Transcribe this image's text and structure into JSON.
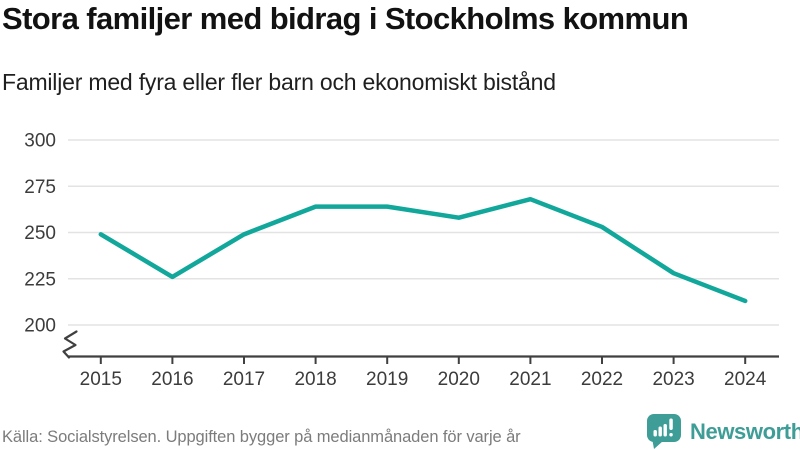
{
  "header": {
    "title": "Stora familjer med bidrag i Stockholms kommun",
    "subtitle": "Familjer med fyra eller fler barn och ekonomiskt bistånd"
  },
  "footer": {
    "source": "Källa: Socialstyrelsen. Uppgiften bygger på medianmånaden för varje år",
    "brand": "Newsworthy"
  },
  "colors": {
    "accent": "#12A79B",
    "brand": "#3E9D96",
    "grid": "#E3E3E3",
    "axis": "#404040",
    "tick_text": "#3C3C3C",
    "title_text": "#121212",
    "subtitle_text": "#1F1F1F",
    "muted_text": "#7C7C7C",
    "background": "#FFFFFF"
  },
  "chart_data": {
    "type": "line",
    "title": "Stora familjer med bidrag i Stockholms kommun",
    "subtitle": "Familjer med fyra eller fler barn och ekonomiskt bistånd",
    "categories": [
      "2015",
      "2016",
      "2017",
      "2018",
      "2019",
      "2020",
      "2021",
      "2022",
      "2023",
      "2024"
    ],
    "series": [
      {
        "name": "Familjer med fyra eller fler barn och ekonomiskt bistånd",
        "values": [
          249,
          226,
          249,
          264,
          264,
          258,
          268,
          253,
          228,
          213
        ]
      }
    ],
    "xlabel": "",
    "ylabel": "",
    "yticks": [
      300,
      275,
      250,
      225,
      200
    ],
    "ylim": [
      200,
      300
    ],
    "axis_break": true,
    "grid": "horizontal-only",
    "legend": "none",
    "line_color": "#12A79B"
  }
}
